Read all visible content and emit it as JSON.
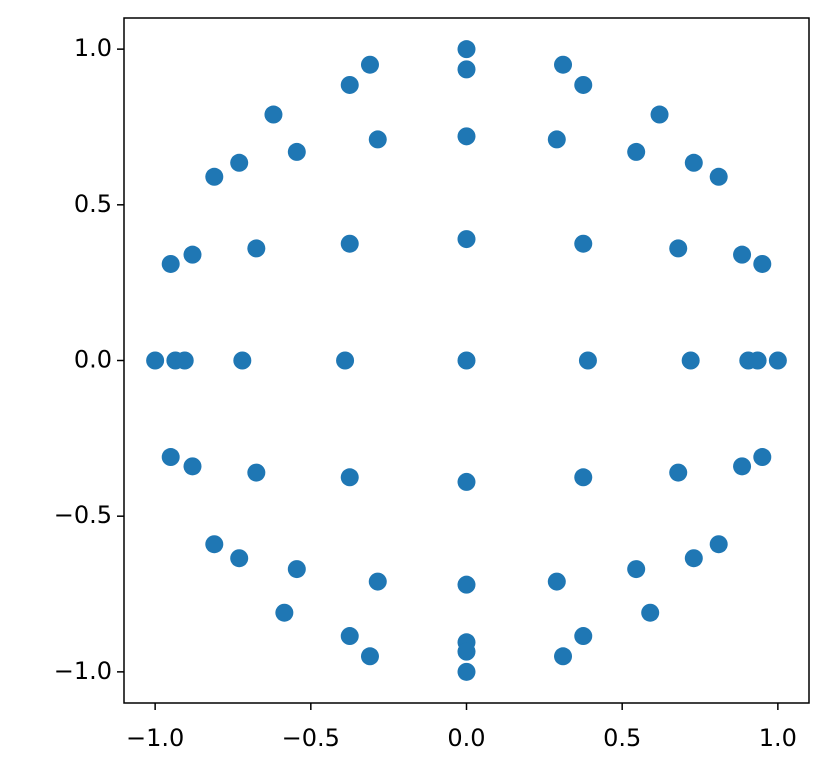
{
  "chart_data": {
    "type": "scatter",
    "color": "#1f77b4",
    "x": [
      0,
      0,
      -0.31,
      0.31,
      -0.375,
      0.375,
      -0.62,
      0.62,
      -0.285,
      0.29,
      0,
      -0.545,
      0.545,
      -0.73,
      0.73,
      -0.81,
      0.81,
      0,
      -0.375,
      0.375,
      -0.675,
      0.68,
      -0.88,
      0.885,
      -0.95,
      0.95,
      -1.0,
      -0.935,
      -0.905,
      -0.72,
      -0.39,
      0,
      0.39,
      0.72,
      0.905,
      0.935,
      1.0,
      -0.95,
      0.95,
      -0.88,
      0.885,
      -0.675,
      0.68,
      -0.375,
      0.375,
      0,
      -0.81,
      0.81,
      -0.73,
      0.73,
      -0.545,
      0.545,
      -0.285,
      0.29,
      0,
      -0.585,
      0.59,
      -0.375,
      0.375,
      0,
      0,
      -0.31,
      0.31,
      0
    ],
    "y": [
      1.0,
      0.935,
      0.95,
      0.95,
      0.885,
      0.885,
      0.79,
      0.79,
      0.71,
      0.71,
      0.72,
      0.67,
      0.67,
      0.635,
      0.635,
      0.59,
      0.59,
      0.39,
      0.375,
      0.375,
      0.36,
      0.36,
      0.34,
      0.34,
      0.31,
      0.31,
      0,
      0,
      0,
      0,
      0,
      0,
      0,
      0,
      0,
      0,
      0,
      -0.31,
      -0.31,
      -0.34,
      -0.34,
      -0.36,
      -0.36,
      -0.375,
      -0.375,
      -0.39,
      -0.59,
      -0.59,
      -0.635,
      -0.635,
      -0.67,
      -0.67,
      -0.71,
      -0.71,
      -0.72,
      -0.81,
      -0.81,
      -0.885,
      -0.885,
      -0.905,
      -0.935,
      -0.95,
      -0.95,
      -1.0
    ],
    "xlim": [
      -1.1,
      1.1
    ],
    "ylim": [
      -1.1,
      1.1
    ],
    "xticks": [
      {
        "value": -1.0,
        "label": "−1.0"
      },
      {
        "value": -0.5,
        "label": "−0.5"
      },
      {
        "value": 0.0,
        "label": "0.0"
      },
      {
        "value": 0.5,
        "label": "0.5"
      },
      {
        "value": 1.0,
        "label": "1.0"
      }
    ],
    "yticks": [
      {
        "value": -1.0,
        "label": "−1.0"
      },
      {
        "value": -0.5,
        "label": "−0.5"
      },
      {
        "value": 0.0,
        "label": "0.0"
      },
      {
        "value": 0.5,
        "label": "0.5"
      },
      {
        "value": 1.0,
        "label": "1.0"
      }
    ]
  }
}
